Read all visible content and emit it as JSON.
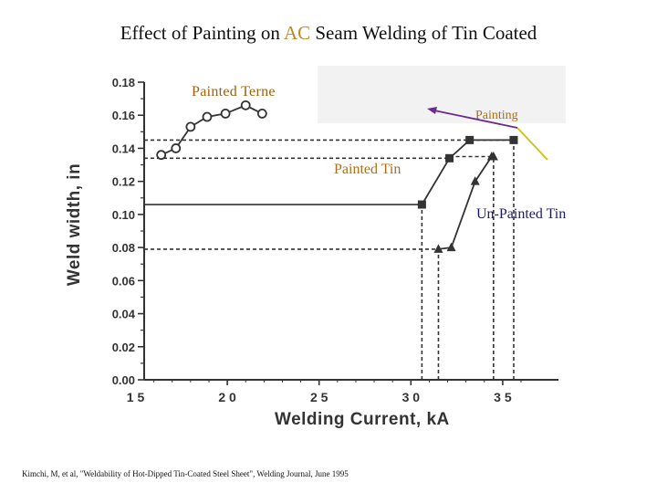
{
  "slide": {
    "title_before": "Effect of Painting on ",
    "title_accent": "AC",
    "title_after": " Seam Welding of Tin Coated",
    "citation": "Kimchi, M, et al, \"Weldability of Hot-Dipped Tin-Coated Steel Sheet\", Welding Journal, June 1995"
  },
  "callouts": {
    "painted_terne": "Painted Terne",
    "painting": "Painting",
    "painted_tin": "Painted Tin",
    "unpainted_tin": "Un-Painted Tin"
  },
  "colors": {
    "accent": "#c08a1c",
    "callout_brown": "#b06d12",
    "callout_navy": "#1b1b6e",
    "arrow_yellow": "#d4c21a",
    "arrow_purple": "#6a2a8a",
    "plot_ink": "#333333"
  },
  "chart_data": {
    "type": "line",
    "title": "",
    "xlabel": "Welding Current, kA",
    "ylabel": "Weld width, in",
    "xlim": [
      15,
      36.5
    ],
    "ylim": [
      0,
      0.18
    ],
    "x_ticks": [
      15,
      20,
      25,
      30,
      35
    ],
    "x_tick_labels": [
      "1 5",
      "2 0",
      "2 5",
      "3 0",
      "3 5"
    ],
    "y_ticks": [
      0.0,
      0.02,
      0.04,
      0.06,
      0.08,
      0.1,
      0.12,
      0.14,
      0.16,
      0.18
    ],
    "y_tick_labels": [
      "0.00",
      "0.02",
      "0.04",
      "0.06",
      "0.08",
      "0.10",
      "0.12",
      "0.14",
      "0.16",
      "0.18"
    ],
    "grid": false,
    "series": [
      {
        "name": "Painted Terne",
        "marker": "circle",
        "x": [
          16.4,
          17.2,
          18.0,
          18.9,
          19.9,
          21.0,
          21.9
        ],
        "y": [
          0.136,
          0.14,
          0.153,
          0.159,
          0.161,
          0.166,
          0.161
        ]
      },
      {
        "name": "Painted Tin",
        "marker": "square",
        "x": [
          30.6,
          32.1,
          33.2,
          35.6
        ],
        "y": [
          0.106,
          0.134,
          0.145,
          0.145
        ]
      },
      {
        "name": "Un-Painted Tin",
        "marker": "triangle",
        "x": [
          31.5,
          32.2,
          33.5,
          34.4,
          34.5
        ],
        "y": [
          0.079,
          0.08,
          0.12,
          0.135,
          0.135
        ]
      }
    ],
    "reference_lines": [
      {
        "style": "dashed",
        "y": 0.145,
        "x_from": 15,
        "x_to": 35.6
      },
      {
        "style": "dashed",
        "y": 0.134,
        "x_from": 15,
        "x_to": 32.1
      },
      {
        "style": "solid",
        "y": 0.106,
        "x_from": 15,
        "x_to": 30.6
      },
      {
        "style": "dashed",
        "y": 0.079,
        "x_from": 15,
        "x_to": 31.5
      },
      {
        "style": "dashed",
        "x": 30.6,
        "y_from": 0.0,
        "y_to": 0.106
      },
      {
        "style": "dashed",
        "x": 31.5,
        "y_from": 0.0,
        "y_to": 0.079
      },
      {
        "style": "dashed",
        "x": 34.5,
        "y_from": 0.0,
        "y_to": 0.135
      },
      {
        "style": "dashed",
        "x": 35.6,
        "y_from": 0.0,
        "y_to": 0.145
      },
      {
        "style": "dashed",
        "y": 0.135,
        "x_from": 32.1,
        "x_to": 34.5
      }
    ]
  }
}
